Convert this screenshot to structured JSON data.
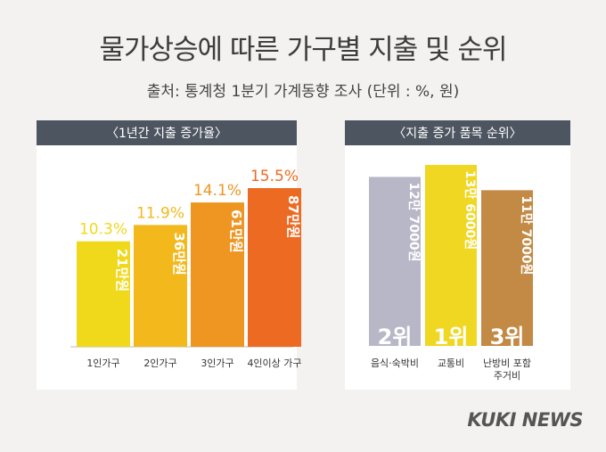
{
  "title": "물가상승에 따른 가구별 지출 및 순위",
  "subtitle": "출처: 통계청 1분기 가계동향 조사 (단위 : %, 원)",
  "left_panel": {
    "header": "〈1년간 지출 증가율〉"
  },
  "right_panel": {
    "header": "〈지출 증가 품목 순위〉"
  },
  "logo": "KUKI NEWS",
  "chart_data": [
    {
      "type": "bar",
      "title": "〈1년간 지출 증가율〉",
      "categories": [
        "1인가구",
        "2인가구",
        "3인가구",
        "4인이상 가구"
      ],
      "values": [
        10.3,
        11.9,
        14.1,
        15.5
      ],
      "value_labels": [
        "10.3%",
        "11.9%",
        "14.1%",
        "15.5%"
      ],
      "bar_labels": [
        "21만원",
        "36만원",
        "61만원",
        "87만원"
      ],
      "colors": [
        "#f0d81a",
        "#f2b81c",
        "#ee9621",
        "#ec6a22"
      ],
      "ylim": [
        0,
        15.5
      ]
    },
    {
      "type": "bar",
      "title": "〈지출 증가 품목 순위〉",
      "categories": [
        "음식·숙박비",
        "교통비",
        "난방비 포함\n주거비"
      ],
      "values": [
        127000,
        136000,
        117000
      ],
      "bar_labels": [
        "12만 7000원",
        "13만 6000원",
        "11만 7000원"
      ],
      "ranks": [
        "2위",
        "1위",
        "3위"
      ],
      "colors": [
        "#b7b7c7",
        "#f0d722",
        "#c38a45"
      ],
      "ylim": [
        0,
        136000
      ]
    }
  ]
}
